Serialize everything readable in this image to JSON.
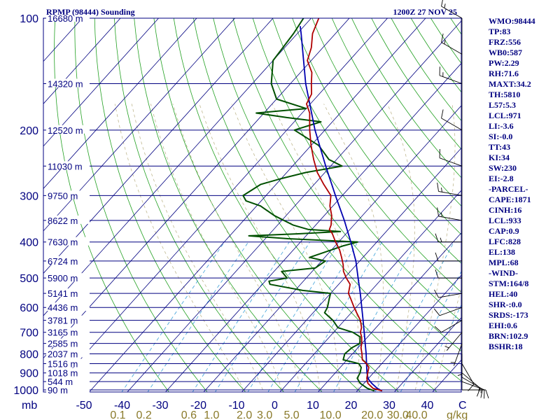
{
  "chart_data": {
    "type": "line",
    "title": "RPMP (98444) Sounding",
    "valid_time": "1200Z 27 NOV 25",
    "y_unit_label": "mb",
    "x_unit_label": "C",
    "mix_unit_label": "g/kg",
    "p_ticks": [
      "100",
      "200",
      "300",
      "400",
      "500",
      "600",
      "700",
      "800",
      "900",
      "1000"
    ],
    "t_ticks": [
      "-50",
      "-40",
      "-30",
      "-20",
      "-10",
      "0",
      "10",
      "20",
      "30",
      "40"
    ],
    "mix_ticks": [
      "0.1",
      "0.2",
      "0.6",
      "1.0",
      "2.0",
      "3.0",
      "5.0",
      "10.0",
      "20.0",
      "30.0",
      "40.0"
    ],
    "height_labels": [
      {
        "p": 100,
        "label": "16680 m"
      },
      {
        "p": 150,
        "label": "14320 m"
      },
      {
        "p": 200,
        "label": "12520 m"
      },
      {
        "p": 250,
        "label": "11030 m"
      },
      {
        "p": 300,
        "label": "9750 m"
      },
      {
        "p": 350,
        "label": "8622 m"
      },
      {
        "p": 400,
        "label": "7630 m"
      },
      {
        "p": 450,
        "label": "6724 m"
      },
      {
        "p": 500,
        "label": "5900 m"
      },
      {
        "p": 550,
        "label": "5141 m"
      },
      {
        "p": 600,
        "label": "4436 m"
      },
      {
        "p": 650,
        "label": "3781 m"
      },
      {
        "p": 700,
        "label": "3165 m"
      },
      {
        "p": 750,
        "label": "2585 m"
      },
      {
        "p": 800,
        "label": "2037 m"
      },
      {
        "p": 850,
        "label": "1516 m"
      },
      {
        "p": 900,
        "label": "1018 m"
      },
      {
        "p": 950,
        "label": "544 m"
      },
      {
        "p": 1000,
        "label": "90 m"
      }
    ],
    "series": [
      {
        "key": "temperature",
        "color": "#b00000",
        "points": [
          [
            1006,
            26.5
          ],
          [
            990,
            23.5
          ],
          [
            960,
            21.0
          ],
          [
            930,
            19.5
          ],
          [
            900,
            18.5
          ],
          [
            870,
            17.5
          ],
          [
            850,
            16.0
          ],
          [
            830,
            14.0
          ],
          [
            800,
            12.5
          ],
          [
            770,
            10.8
          ],
          [
            750,
            10.0
          ],
          [
            720,
            8.4
          ],
          [
            700,
            7.0
          ],
          [
            680,
            6.2
          ],
          [
            650,
            4.2
          ],
          [
            620,
            1.4
          ],
          [
            600,
            -0.5
          ],
          [
            570,
            -3.3
          ],
          [
            550,
            -5.3
          ],
          [
            520,
            -7.0
          ],
          [
            500,
            -9.5
          ],
          [
            480,
            -11.8
          ],
          [
            460,
            -13.5
          ],
          [
            440,
            -15.6
          ],
          [
            420,
            -17.9
          ],
          [
            400,
            -20.8
          ],
          [
            380,
            -23.6
          ],
          [
            370,
            -25.4
          ],
          [
            360,
            -26.0
          ],
          [
            350,
            -27.0
          ],
          [
            340,
            -28.0
          ],
          [
            320,
            -30.8
          ],
          [
            300,
            -33.0
          ],
          [
            280,
            -37.5
          ],
          [
            260,
            -42.0
          ],
          [
            240,
            -46.0
          ],
          [
            220,
            -50.0
          ],
          [
            200,
            -54.0
          ],
          [
            180,
            -58.0
          ],
          [
            170,
            -61.0
          ],
          [
            160,
            -62.0
          ],
          [
            150,
            -64.5
          ],
          [
            140,
            -67.0
          ],
          [
            130,
            -71.0
          ],
          [
            120,
            -73.0
          ],
          [
            110,
            -76.0
          ],
          [
            100,
            -78.0
          ]
        ]
      },
      {
        "key": "dewpoint",
        "color": "#005000",
        "points": [
          [
            1006,
            24.5
          ],
          [
            990,
            22.0
          ],
          [
            960,
            19.0
          ],
          [
            930,
            17.0
          ],
          [
            900,
            16.5
          ],
          [
            870,
            15.5
          ],
          [
            850,
            14.0
          ],
          [
            830,
            9.0
          ],
          [
            800,
            8.0
          ],
          [
            770,
            8.4
          ],
          [
            750,
            9.5
          ],
          [
            720,
            8.0
          ],
          [
            700,
            5.0
          ],
          [
            680,
            0.0
          ],
          [
            650,
            -3.0
          ],
          [
            620,
            -7.0
          ],
          [
            600,
            -7.5
          ],
          [
            570,
            -9.0
          ],
          [
            550,
            -10.0
          ],
          [
            540,
            -18.0
          ],
          [
            520,
            -28.0
          ],
          [
            510,
            -29.0
          ],
          [
            500,
            -25.0
          ],
          [
            480,
            -28.0
          ],
          [
            470,
            -20.0
          ],
          [
            450,
            -19.0
          ],
          [
            440,
            -24.0
          ],
          [
            420,
            -20.0
          ],
          [
            410,
            -18.0
          ],
          [
            400,
            -15.0
          ],
          [
            392,
            -34.0
          ],
          [
            385,
            -45.0
          ],
          [
            380,
            -32.0
          ],
          [
            375,
            -22.0
          ],
          [
            370,
            -31.0
          ],
          [
            360,
            -36.0
          ],
          [
            340,
            -43.0
          ],
          [
            320,
            -49.0
          ],
          [
            310,
            -54.0
          ],
          [
            300,
            -56.0
          ],
          [
            280,
            -54.0
          ],
          [
            270,
            -50.0
          ],
          [
            260,
            -45.0
          ],
          [
            250,
            -37.0
          ],
          [
            240,
            -42.0
          ],
          [
            220,
            -48.0
          ],
          [
            200,
            -58.0
          ],
          [
            190,
            -53.0
          ],
          [
            185,
            -63.0
          ],
          [
            180,
            -72.0
          ],
          [
            175,
            -60.0
          ],
          [
            165,
            -70.0
          ],
          [
            150,
            -75.0
          ],
          [
            130,
            -80.0
          ],
          [
            110,
            -81.0
          ],
          [
            100,
            -82.0
          ]
        ]
      },
      {
        "key": "parcel",
        "color": "#0000b0",
        "points": [
          [
            1006,
            26.5
          ],
          [
            990,
            24.6
          ],
          [
            960,
            22.0
          ],
          [
            940,
            20.5
          ],
          [
            933,
            20.0
          ],
          [
            900,
            18.3
          ],
          [
            850,
            16.0
          ],
          [
            800,
            13.6
          ],
          [
            750,
            10.9
          ],
          [
            700,
            8.0
          ],
          [
            650,
            4.9
          ],
          [
            600,
            1.5
          ],
          [
            550,
            -2.2
          ],
          [
            500,
            -6.4
          ],
          [
            450,
            -11.0
          ],
          [
            400,
            -16.8
          ],
          [
            350,
            -23.6
          ],
          [
            300,
            -31.8
          ],
          [
            250,
            -41.3
          ],
          [
            200,
            -52.6
          ],
          [
            150,
            -66.0
          ],
          [
            130,
            -72.0
          ],
          [
            110,
            -79.0
          ],
          [
            105,
            -81.0
          ]
        ]
      }
    ],
    "winds": [
      {
        "p": 1000,
        "dir": 90,
        "spd": 10
      },
      {
        "p": 950,
        "dir": 110,
        "spd": 15
      },
      {
        "p": 925,
        "dir": 120,
        "spd": 15
      },
      {
        "p": 900,
        "dir": 130,
        "spd": 10
      },
      {
        "p": 850,
        "dir": 150,
        "spd": 10
      },
      {
        "p": 800,
        "dir": 180,
        "spd": 5
      },
      {
        "p": 750,
        "dir": 200,
        "spd": 5
      },
      {
        "p": 700,
        "dir": 220,
        "spd": 5
      },
      {
        "p": 650,
        "dir": 240,
        "spd": 10
      },
      {
        "p": 600,
        "dir": 250,
        "spd": 10
      },
      {
        "p": 550,
        "dir": 260,
        "spd": 10
      },
      {
        "p": 500,
        "dir": 270,
        "spd": 10
      },
      {
        "p": 450,
        "dir": 270,
        "spd": 10
      },
      {
        "p": 400,
        "dir": 270,
        "spd": 15
      },
      {
        "p": 350,
        "dir": 280,
        "spd": 15
      },
      {
        "p": 300,
        "dir": 280,
        "spd": 15
      },
      {
        "p": 250,
        "dir": 290,
        "spd": 10
      },
      {
        "p": 200,
        "dir": 300,
        "spd": 10
      },
      {
        "p": 150,
        "dir": 290,
        "spd": 15
      },
      {
        "p": 125,
        "dir": 300,
        "spd": 15
      },
      {
        "p": 100,
        "dir": 300,
        "spd": 15
      }
    ],
    "ylim": [
      100,
      1000
    ],
    "xlim": [
      -50,
      50
    ],
    "grid": true
  },
  "indices": [
    "WMO:98444",
    "TP:83",
    "FRZ:556",
    "WB0:587",
    "PW:2.29",
    "RH:71.6",
    "MAXT:34.2",
    "TH:5810",
    "L57:5.3",
    "LCL:971",
    "LI:-3.6",
    "SI:-0.0",
    "TT:43",
    "KI:34",
    "SW:230",
    "EI:-2.8",
    "-PARCEL-",
    "CAPE:1871",
    "CINH:16",
    "LCL:933",
    "CAP:0.9",
    "LFC:828",
    "EL:138",
    "MPL:68",
    "-WIND-",
    "STM:164/8",
    "HEL:40",
    "SHR-:0.0",
    "SRDS:-173",
    "EHI:0.6",
    "BRN:102.9",
    "BSHR:18"
  ]
}
